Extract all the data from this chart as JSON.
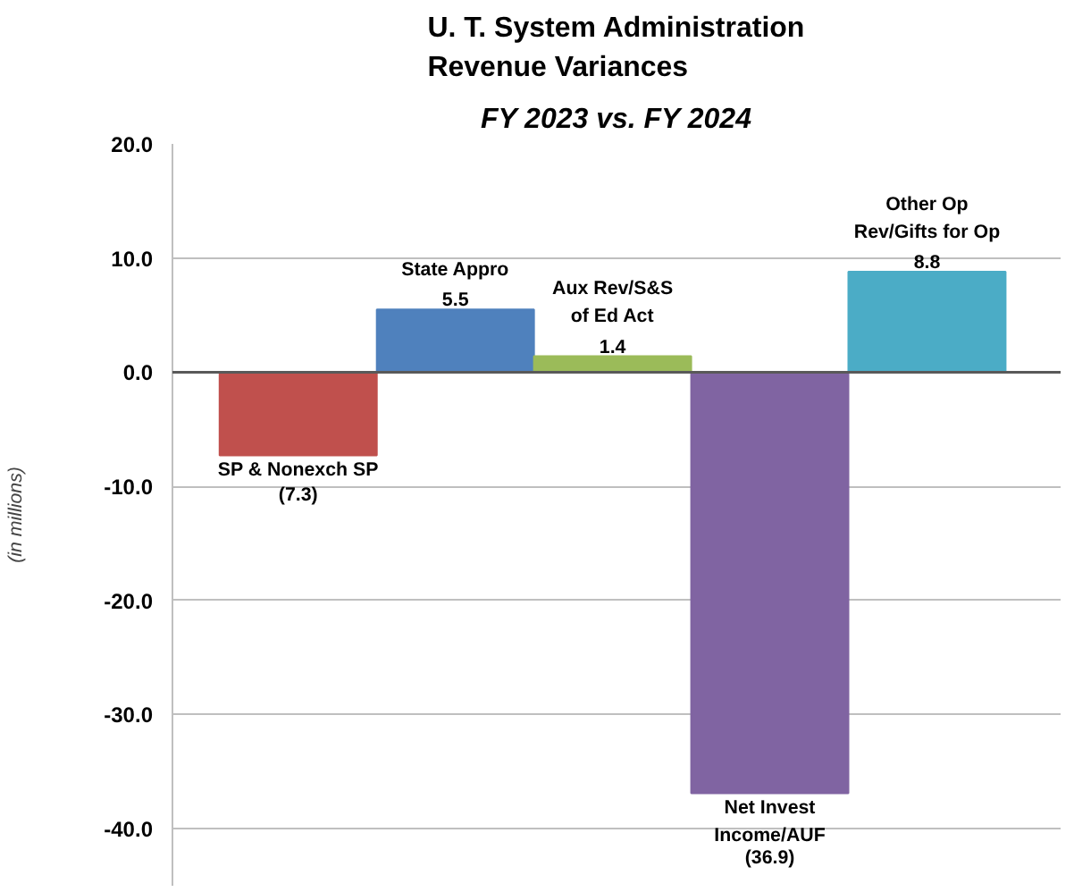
{
  "chart_data": {
    "type": "bar",
    "title": "U. T. System Administration\nRevenue Variances",
    "subtitle": "FY 2023 vs. FY 2024",
    "ylabel": "(in millions)",
    "categories": [
      "SP & Nonexch SP",
      "State Appro",
      "Aux Rev/S&S\nof Ed Act",
      "Net Invest\nIncome/AUF",
      "Other Op\nRev/Gifts for Op"
    ],
    "values": [
      -7.3,
      5.5,
      1.4,
      -36.9,
      8.8
    ],
    "colors": [
      "#c0504d",
      "#4f81bd",
      "#9bbb59",
      "#8064a2",
      "#4bacc6"
    ],
    "value_labels": [
      "(7.3)",
      "5.5",
      "1.4",
      "(36.9)",
      "8.8"
    ],
    "ylim": [
      -45,
      20
    ],
    "yticks": [
      {
        "value": -40,
        "label": "-40.0"
      },
      {
        "value": -30,
        "label": "-30.0"
      },
      {
        "value": -20,
        "label": "-20.0"
      },
      {
        "value": -10,
        "label": "-10.0"
      },
      {
        "value": 0,
        "label": "0.0"
      },
      {
        "value": 10,
        "label": "10.0"
      },
      {
        "value": 20,
        "label": "20.0"
      }
    ],
    "grid": "y",
    "tick_labels": "y"
  }
}
